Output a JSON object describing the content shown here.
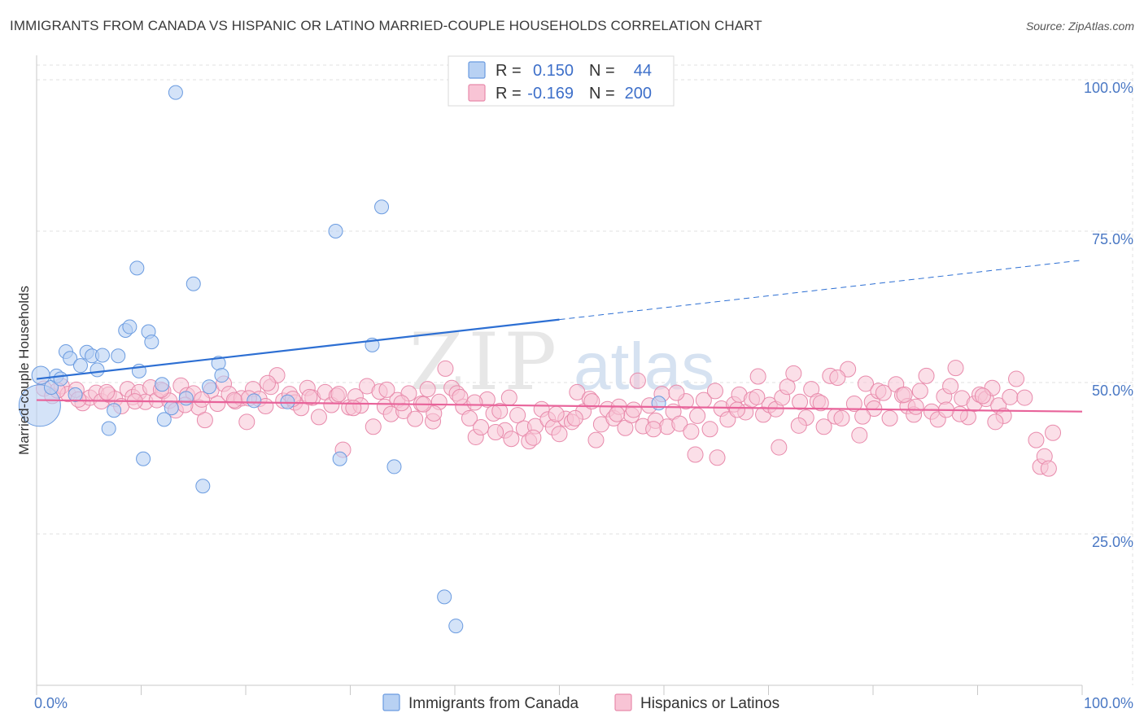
{
  "title": "IMMIGRANTS FROM CANADA VS HISPANIC OR LATINO MARRIED-COUPLE HOUSEHOLDS CORRELATION CHART",
  "source": "Source: ZipAtlas.com",
  "watermark": {
    "zip": "ZIP",
    "atlas": "atlas"
  },
  "colors": {
    "blue_fill": "#b8d1f3",
    "blue_stroke": "#6a9be0",
    "blue_line": "#2d6fd3",
    "pink_fill": "#f8c4d5",
    "pink_stroke": "#e88aab",
    "pink_line": "#e8639a",
    "tick_text": "#4a78c4",
    "grid": "#e2e2e2"
  },
  "stats_legend": {
    "r_label": "R =",
    "n_label": "N =",
    "rows": [
      {
        "series": "Immigrants from Canada",
        "r": "0.150",
        "n": "44"
      },
      {
        "series": "Hispanics or Latinos",
        "r": "-0.169",
        "n": "200"
      }
    ]
  },
  "chart_data": {
    "type": "scatter",
    "title": "IMMIGRANTS FROM CANADA VS HISPANIC OR LATINO MARRIED-COUPLE HOUSEHOLDS CORRELATION CHART",
    "xlabel": "",
    "ylabel": "Married-couple Households",
    "xlim": [
      0,
      100
    ],
    "ylim": [
      0,
      102
    ],
    "x_tick_labels": [
      "0.0%",
      "100.0%"
    ],
    "y_ticks": [
      25,
      50,
      75,
      100
    ],
    "y_tick_labels": [
      "25.0%",
      "50.0%",
      "75.0%",
      "100.0%"
    ],
    "grid": true,
    "legend_position": "bottom-center",
    "series": [
      {
        "name": "Immigrants from Canada",
        "r": 0.15,
        "n": 44,
        "trend": {
          "x0": 0,
          "y0": 50.6,
          "x1": 50,
          "y1": 60.4,
          "dashed_to_x": 100,
          "dashed_to_y": 70.2
        },
        "points": [
          [
            0.3,
            46.2,
            3
          ],
          [
            0.4,
            51.2,
            1.3
          ],
          [
            1.4,
            49.2,
            1
          ],
          [
            1.9,
            51.1,
            1
          ],
          [
            2.3,
            50.6,
            1
          ],
          [
            2.8,
            55.1,
            1
          ],
          [
            3.2,
            54.0,
            1
          ],
          [
            3.7,
            48.0,
            1
          ],
          [
            4.2,
            52.8,
            1
          ],
          [
            4.8,
            55.0,
            1
          ],
          [
            5.3,
            54.4,
            1
          ],
          [
            5.8,
            52.1,
            1
          ],
          [
            6.3,
            54.5,
            1
          ],
          [
            6.9,
            42.4,
            1
          ],
          [
            7.4,
            45.4,
            1
          ],
          [
            7.8,
            54.4,
            1
          ],
          [
            8.5,
            58.6,
            1
          ],
          [
            8.9,
            59.2,
            1
          ],
          [
            9.6,
            68.9,
            1
          ],
          [
            9.8,
            51.9,
            1
          ],
          [
            10.2,
            37.4,
            1
          ],
          [
            10.7,
            58.4,
            1
          ],
          [
            11.0,
            56.7,
            1
          ],
          [
            12.0,
            49.7,
            1
          ],
          [
            12.2,
            43.9,
            1
          ],
          [
            12.9,
            45.8,
            1
          ],
          [
            13.3,
            97.9,
            1
          ],
          [
            14.3,
            47.4,
            1
          ],
          [
            15.0,
            66.3,
            1
          ],
          [
            15.9,
            32.9,
            1
          ],
          [
            16.5,
            49.3,
            1
          ],
          [
            17.4,
            53.2,
            1
          ],
          [
            17.7,
            51.2,
            1
          ],
          [
            20.8,
            47.0,
            1
          ],
          [
            24.0,
            46.8,
            1
          ],
          [
            29.0,
            37.4,
            1
          ],
          [
            28.6,
            75.0,
            1
          ],
          [
            32.1,
            56.2,
            1
          ],
          [
            33.0,
            79.0,
            1
          ],
          [
            34.2,
            36.1,
            1
          ],
          [
            39.0,
            14.6,
            1
          ],
          [
            40.1,
            9.8,
            1
          ],
          [
            47.0,
            101.0,
            1
          ],
          [
            59.5,
            46.6,
            1
          ]
        ]
      },
      {
        "name": "Hispanics or Latinos",
        "r": -0.169,
        "n": 200,
        "trend": {
          "x0": 0,
          "y0": 47.1,
          "x1": 100,
          "y1": 45.2
        },
        "points": [
          [
            0.7,
            49.0
          ],
          [
            1.5,
            47.8
          ],
          [
            2.4,
            49.4
          ],
          [
            3.0,
            48.1
          ],
          [
            3.8,
            48.8
          ],
          [
            4.4,
            46.6
          ],
          [
            5.1,
            47.5
          ],
          [
            5.7,
            48.3
          ],
          [
            6.2,
            46.9
          ],
          [
            6.9,
            48.0
          ],
          [
            7.5,
            47.3
          ],
          [
            8.1,
            46.1
          ],
          [
            8.7,
            48.9
          ],
          [
            9.2,
            47.6
          ],
          [
            9.8,
            48.4
          ],
          [
            10.4,
            46.8
          ],
          [
            10.9,
            49.2
          ],
          [
            11.5,
            47.1
          ],
          [
            12.1,
            48.6
          ],
          [
            12.7,
            47.0
          ],
          [
            13.3,
            45.4
          ],
          [
            13.8,
            49.5
          ],
          [
            14.4,
            47.9
          ],
          [
            15.0,
            48.2
          ],
          [
            15.5,
            45.9
          ],
          [
            16.1,
            43.8
          ],
          [
            16.7,
            48.7
          ],
          [
            17.3,
            46.5
          ],
          [
            17.9,
            49.8
          ],
          [
            18.4,
            48.1
          ],
          [
            19.0,
            46.9
          ],
          [
            19.6,
            47.4
          ],
          [
            20.1,
            43.5
          ],
          [
            20.7,
            48.9
          ],
          [
            21.3,
            47.3
          ],
          [
            21.9,
            46.1
          ],
          [
            22.4,
            49.3
          ],
          [
            23.0,
            51.2
          ],
          [
            23.6,
            47.0
          ],
          [
            24.2,
            48.1
          ],
          [
            24.7,
            46.7
          ],
          [
            25.3,
            45.8
          ],
          [
            25.9,
            49.1
          ],
          [
            26.4,
            47.5
          ],
          [
            27.0,
            44.3
          ],
          [
            27.6,
            48.4
          ],
          [
            28.2,
            46.3
          ],
          [
            28.7,
            47.8
          ],
          [
            29.3,
            38.9
          ],
          [
            29.9,
            45.9
          ],
          [
            30.5,
            47.7
          ],
          [
            31.0,
            46.2
          ],
          [
            31.6,
            49.4
          ],
          [
            32.2,
            42.7
          ],
          [
            32.8,
            48.5
          ],
          [
            33.3,
            46.0
          ],
          [
            33.9,
            44.8
          ],
          [
            34.5,
            47.1
          ],
          [
            35.1,
            45.3
          ],
          [
            35.6,
            48.2
          ],
          [
            36.2,
            44.0
          ],
          [
            36.8,
            46.5
          ],
          [
            37.4,
            48.9
          ],
          [
            37.9,
            43.6
          ],
          [
            38.5,
            46.8
          ],
          [
            39.1,
            52.3
          ],
          [
            39.7,
            49.1
          ],
          [
            40.2,
            48.2
          ],
          [
            40.8,
            46.0
          ],
          [
            41.4,
            44.1
          ],
          [
            42.0,
            41.0
          ],
          [
            42.5,
            42.6
          ],
          [
            43.1,
            47.2
          ],
          [
            43.7,
            44.9
          ],
          [
            44.3,
            45.3
          ],
          [
            44.8,
            42.1
          ],
          [
            45.4,
            40.7
          ],
          [
            46.0,
            44.6
          ],
          [
            46.6,
            42.4
          ],
          [
            47.1,
            40.3
          ],
          [
            47.7,
            42.8
          ],
          [
            48.3,
            45.6
          ],
          [
            48.9,
            43.9
          ],
          [
            49.4,
            42.6
          ],
          [
            50.0,
            41.5
          ],
          [
            50.6,
            44.0
          ],
          [
            51.2,
            43.5
          ],
          [
            51.7,
            48.4
          ],
          [
            52.3,
            45.2
          ],
          [
            52.9,
            47.3
          ],
          [
            53.5,
            40.5
          ],
          [
            54.0,
            43.1
          ],
          [
            54.6,
            45.6
          ],
          [
            55.2,
            44.1
          ],
          [
            55.7,
            46.0
          ],
          [
            56.3,
            42.5
          ],
          [
            56.9,
            44.6
          ],
          [
            57.5,
            50.3
          ],
          [
            58.0,
            42.8
          ],
          [
            58.6,
            46.2
          ],
          [
            59.2,
            43.7
          ],
          [
            59.8,
            48.1
          ],
          [
            60.3,
            42.7
          ],
          [
            60.9,
            45.2
          ],
          [
            61.5,
            43.2
          ],
          [
            62.1,
            46.9
          ],
          [
            62.6,
            41.9
          ],
          [
            63.2,
            44.5
          ],
          [
            63.8,
            47.1
          ],
          [
            64.4,
            42.3
          ],
          [
            64.9,
            48.6
          ],
          [
            65.5,
            45.7
          ],
          [
            66.1,
            43.9
          ],
          [
            66.7,
            46.4
          ],
          [
            67.2,
            48.0
          ],
          [
            67.8,
            45.1
          ],
          [
            68.4,
            47.2
          ],
          [
            69.0,
            51.0
          ],
          [
            69.5,
            44.7
          ],
          [
            70.1,
            46.3
          ],
          [
            70.7,
            45.6
          ],
          [
            71.3,
            47.5
          ],
          [
            71.8,
            49.3
          ],
          [
            72.4,
            51.5
          ],
          [
            73.0,
            46.8
          ],
          [
            73.6,
            44.2
          ],
          [
            74.1,
            48.9
          ],
          [
            74.7,
            46.9
          ],
          [
            75.3,
            42.7
          ],
          [
            75.9,
            51.1
          ],
          [
            76.4,
            44.4
          ],
          [
            77.0,
            44.1
          ],
          [
            77.6,
            52.2
          ],
          [
            78.2,
            46.5
          ],
          [
            78.7,
            41.3
          ],
          [
            79.3,
            49.8
          ],
          [
            79.9,
            46.8
          ],
          [
            80.5,
            48.6
          ],
          [
            81.0,
            48.3
          ],
          [
            81.6,
            44.1
          ],
          [
            82.2,
            49.7
          ],
          [
            82.8,
            47.9
          ],
          [
            83.3,
            46.1
          ],
          [
            83.9,
            44.7
          ],
          [
            84.5,
            48.6
          ],
          [
            85.1,
            51.1
          ],
          [
            85.6,
            45.2
          ],
          [
            86.2,
            43.9
          ],
          [
            86.8,
            47.7
          ],
          [
            87.4,
            49.4
          ],
          [
            87.9,
            52.4
          ],
          [
            88.5,
            47.4
          ],
          [
            89.1,
            44.3
          ],
          [
            89.7,
            46.5
          ],
          [
            90.2,
            48.0
          ],
          [
            90.8,
            47.3
          ],
          [
            91.4,
            49.1
          ],
          [
            92.0,
            46.2
          ],
          [
            92.5,
            44.5
          ],
          [
            93.1,
            47.6
          ],
          [
            93.7,
            50.6
          ],
          [
            95.6,
            40.5
          ],
          [
            96.0,
            36.1
          ],
          [
            96.4,
            37.8
          ],
          [
            96.8,
            35.8
          ],
          [
            97.2,
            41.7
          ],
          [
            14.2,
            46.3
          ],
          [
            18.9,
            47.1
          ],
          [
            22.1,
            49.9
          ],
          [
            26.1,
            47.6
          ],
          [
            30.3,
            45.8
          ],
          [
            34.9,
            46.6
          ],
          [
            38.0,
            44.9
          ],
          [
            41.9,
            46.7
          ],
          [
            45.2,
            47.5
          ],
          [
            49.7,
            44.8
          ],
          [
            53.1,
            46.9
          ],
          [
            57.1,
            45.5
          ],
          [
            61.2,
            48.3
          ],
          [
            65.1,
            37.6
          ],
          [
            68.9,
            47.6
          ],
          [
            72.9,
            42.9
          ],
          [
            76.6,
            50.8
          ],
          [
            80.1,
            45.7
          ],
          [
            84.1,
            46.0
          ],
          [
            88.3,
            44.8
          ],
          [
            91.7,
            43.5
          ],
          [
            2.0,
            48.7
          ],
          [
            4.0,
            47.2
          ],
          [
            6.7,
            48.4
          ],
          [
            9.4,
            46.9
          ],
          [
            11.9,
            48.8
          ],
          [
            15.8,
            47.2
          ],
          [
            20.3,
            47.4
          ],
          [
            24.5,
            47.3
          ],
          [
            28.9,
            48.1
          ],
          [
            33.5,
            48.8
          ],
          [
            37.0,
            46.4
          ],
          [
            40.5,
            47.6
          ],
          [
            43.9,
            41.8
          ],
          [
            47.5,
            40.9
          ],
          [
            51.5,
            44.1
          ],
          [
            55.5,
            44.8
          ],
          [
            59.0,
            42.3
          ],
          [
            63.0,
            38.1
          ],
          [
            67.0,
            45.5
          ],
          [
            71.0,
            39.3
          ],
          [
            75.0,
            46.6
          ],
          [
            79.0,
            44.4
          ],
          [
            83.0,
            48.0
          ],
          [
            87.0,
            45.5
          ],
          [
            90.5,
            47.8
          ],
          [
            94.5,
            47.5
          ]
        ]
      }
    ]
  },
  "bottom_legend": [
    {
      "label": "Immigrants from Canada"
    },
    {
      "label": "Hispanics or Latinos"
    }
  ]
}
